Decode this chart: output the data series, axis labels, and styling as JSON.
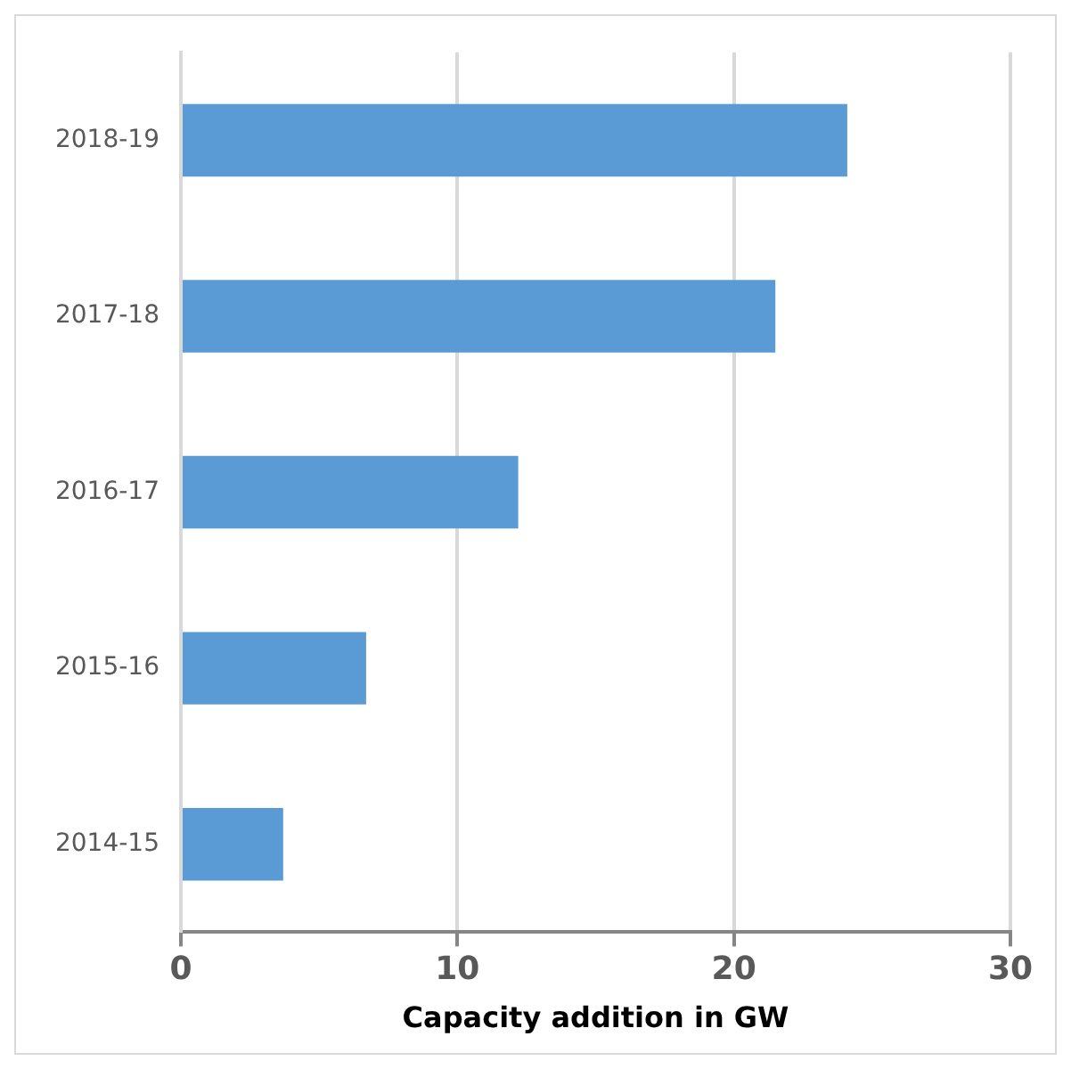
{
  "chart_data": {
    "type": "bar",
    "orientation": "horizontal",
    "xlabel": "Capacity addition in GW",
    "categories": [
      "2018-19",
      "2017-18",
      "2016-17",
      "2015-16",
      "2014-15"
    ],
    "values": [
      24.1,
      21.5,
      12.2,
      6.7,
      3.7
    ],
    "color": "#5b9bd5",
    "xlim": [
      0,
      30
    ],
    "xticks": [
      0,
      10,
      20,
      30
    ],
    "grid": "x",
    "legend": false
  }
}
